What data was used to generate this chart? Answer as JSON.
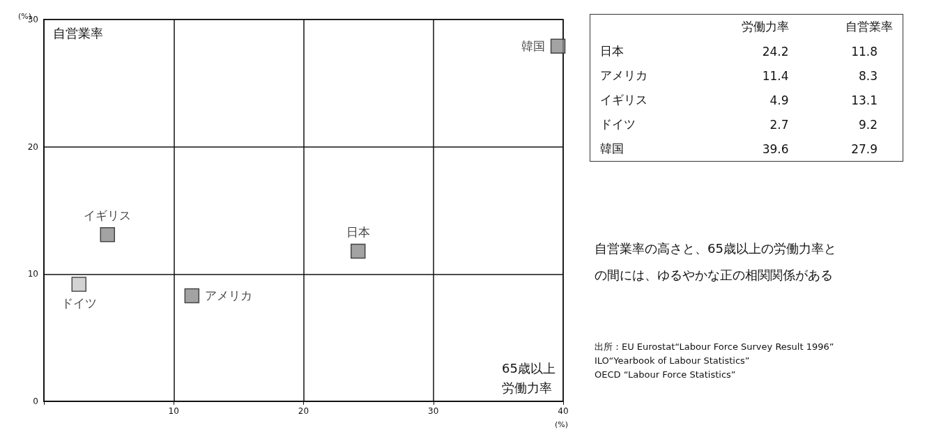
{
  "chart_data": [
    {
      "type": "scatter",
      "xlabel": "65歳以上労働力率",
      "ylabel": "自営業率",
      "series": [
        {
          "name": "日本",
          "color": "#8c8c8c",
          "x": [
            24.2
          ],
          "values": [
            11.8
          ]
        },
        {
          "name": "アメリカ",
          "color": "#8c8c8c",
          "x": [
            11.4
          ],
          "values": [
            8.3
          ]
        },
        {
          "name": "イギリス",
          "color": "#8c8c8c",
          "x": [
            4.9
          ],
          "values": [
            13.1
          ]
        },
        {
          "name": "ドイツ",
          "color": "#c8c8c8",
          "x": [
            2.7
          ],
          "values": [
            9.2
          ]
        },
        {
          "name": "韓国",
          "color": "#8c8c8c",
          "x": [
            39.6
          ],
          "values": [
            27.9
          ]
        }
      ],
      "xlim": [
        0,
        40
      ],
      "xticks": [
        {
          "value": 0,
          "label": null
        },
        10,
        20,
        30,
        40
      ],
      "ylim": [
        0,
        30
      ],
      "yticks": [
        0,
        10,
        20,
        30
      ],
      "grid": true,
      "marker": "square",
      "annotations": [
        "(%)",
        "自営業率の高さと、65歳以上の労働力率との間には、ゆるやかな正の相関関係がある",
        "出所：EU Eurostat“Labour Force Survey Result 1996”\nILO“Yearbook of Labour Statistics”\nOECD “Labour Force Statistics”"
      ]
    },
    {
      "type": "other",
      "categories": [
        "日本",
        "アメリカ",
        "イギリス",
        "ドイツ",
        "韓国"
      ],
      "series": [
        {
          "name": "労働力率",
          "values": [
            24.2,
            11.4,
            4.9,
            2.7,
            39.6
          ]
        },
        {
          "name": "自営業率",
          "values": [
            11.8,
            8.3,
            13.1,
            9.2,
            27.9
          ]
        }
      ],
      "data_labels": true
    }
  ]
}
